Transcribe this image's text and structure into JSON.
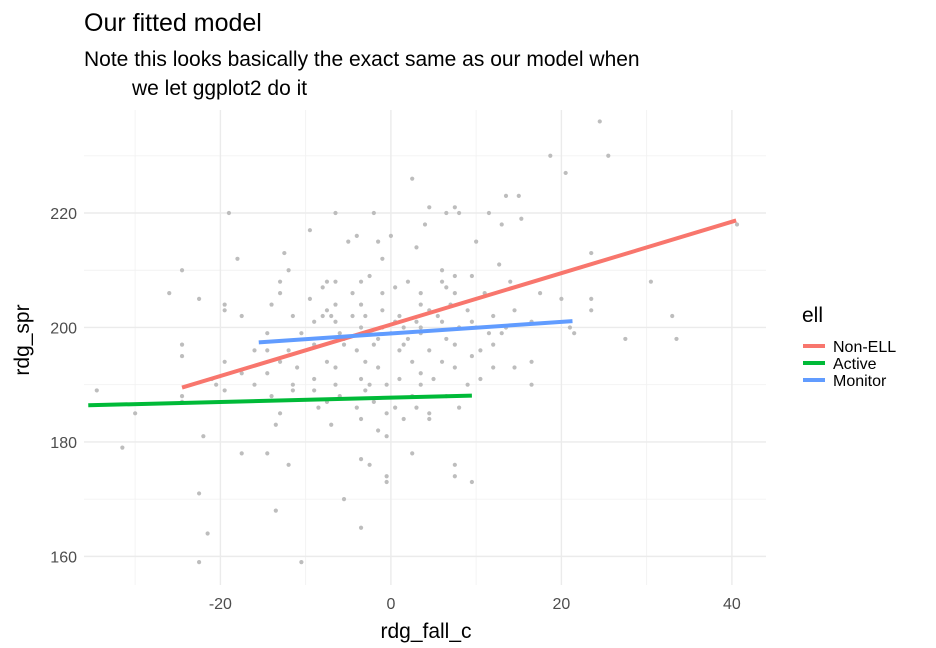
{
  "chart_data": {
    "type": "scatter",
    "title": "Our fitted model",
    "subtitle_lines": [
      "Note this looks basically the exact same as our model when",
      "we let ggplot2 do it"
    ],
    "xlabel": "rdg_fall_c",
    "ylabel": "rdg_spr",
    "xlim": [
      -36,
      44
    ],
    "ylim": [
      155,
      238
    ],
    "x_ticks": [
      -20,
      0,
      20,
      40
    ],
    "y_ticks": [
      160,
      180,
      200,
      220
    ],
    "x_minor": [
      -30,
      -10,
      10,
      30
    ],
    "y_minor": [
      170,
      190,
      210,
      230
    ],
    "grid": true,
    "point_color": "#bdbdbd",
    "legend": {
      "title": "ell",
      "position": "right",
      "entries": [
        {
          "label": "Non-ELL",
          "color": "#F8766D"
        },
        {
          "label": "Active",
          "color": "#00BA38"
        },
        {
          "label": "Monitor",
          "color": "#619CFF"
        }
      ]
    },
    "lines": [
      {
        "name": "Non-ELL",
        "color": "#F8766D",
        "x": [
          -24.5,
          40.5
        ],
        "y": [
          189.5,
          218.7
        ]
      },
      {
        "name": "Active",
        "color": "#00BA38",
        "x": [
          -35.5,
          9.5
        ],
        "y": [
          186.4,
          188.1
        ]
      },
      {
        "name": "Monitor",
        "color": "#619CFF",
        "x": [
          -15.5,
          21.3
        ],
        "y": [
          197.4,
          201.1
        ]
      }
    ],
    "points": [
      [
        24.5,
        236
      ],
      [
        25.5,
        230
      ],
      [
        18.7,
        230
      ],
      [
        20.5,
        227
      ],
      [
        2.5,
        226
      ],
      [
        13.5,
        223
      ],
      [
        15,
        223
      ],
      [
        4.5,
        221
      ],
      [
        7.5,
        221
      ],
      [
        -19,
        220
      ],
      [
        -6.5,
        220
      ],
      [
        -2,
        220
      ],
      [
        6.5,
        220
      ],
      [
        8,
        220
      ],
      [
        11.5,
        220
      ],
      [
        15.3,
        219
      ],
      [
        4,
        218
      ],
      [
        13,
        218
      ],
      [
        40.6,
        218
      ],
      [
        -9.5,
        217
      ],
      [
        -4,
        216
      ],
      [
        0,
        216
      ],
      [
        10,
        215
      ],
      [
        -1.5,
        215
      ],
      [
        -5,
        215
      ],
      [
        3,
        214
      ],
      [
        -12.5,
        213
      ],
      [
        -1,
        212
      ],
      [
        23.5,
        213
      ],
      [
        -18,
        212
      ],
      [
        12.7,
        211
      ],
      [
        -24.5,
        210
      ],
      [
        -12,
        210
      ],
      [
        6,
        210
      ],
      [
        7.5,
        209
      ],
      [
        9.5,
        209
      ],
      [
        -2.5,
        209
      ],
      [
        -13,
        208
      ],
      [
        -7.5,
        208
      ],
      [
        -6.5,
        208
      ],
      [
        -3.5,
        208
      ],
      [
        2,
        208
      ],
      [
        6,
        208
      ],
      [
        14,
        208
      ],
      [
        30.5,
        208
      ],
      [
        -8,
        207
      ],
      [
        0.5,
        207
      ],
      [
        6.5,
        207
      ],
      [
        7.5,
        206
      ],
      [
        11,
        206
      ],
      [
        -26,
        206
      ],
      [
        -22.5,
        205
      ],
      [
        -13,
        206
      ],
      [
        -9.5,
        205
      ],
      [
        -4.5,
        206
      ],
      [
        -1,
        206
      ],
      [
        3.5,
        206
      ],
      [
        17.5,
        206
      ],
      [
        23.5,
        205
      ],
      [
        -19.5,
        204
      ],
      [
        -14,
        204
      ],
      [
        -6.5,
        204
      ],
      [
        -3.5,
        204
      ],
      [
        3.5,
        204
      ],
      [
        7,
        204
      ],
      [
        20,
        205
      ],
      [
        -19.5,
        203
      ],
      [
        -7.5,
        203
      ],
      [
        -1,
        203
      ],
      [
        4.5,
        203
      ],
      [
        9,
        203
      ],
      [
        14.5,
        203
      ],
      [
        23.5,
        203
      ],
      [
        -17.5,
        202
      ],
      [
        -11.5,
        202
      ],
      [
        -8,
        202
      ],
      [
        -7,
        202
      ],
      [
        -4.5,
        202
      ],
      [
        -3,
        202
      ],
      [
        1,
        202
      ],
      [
        5.5,
        202
      ],
      [
        12,
        202
      ],
      [
        33,
        202
      ],
      [
        -9,
        201
      ],
      [
        -6.5,
        201
      ],
      [
        0.5,
        201
      ],
      [
        3,
        201
      ],
      [
        6,
        201
      ],
      [
        9.5,
        201
      ],
      [
        16.5,
        201
      ],
      [
        -3.5,
        200
      ],
      [
        -1,
        200
      ],
      [
        1.5,
        200
      ],
      [
        3.5,
        200
      ],
      [
        8,
        200
      ],
      [
        10,
        200
      ],
      [
        13.5,
        200
      ],
      [
        21,
        200
      ],
      [
        -14.5,
        199
      ],
      [
        -10.5,
        199
      ],
      [
        -6,
        199
      ],
      [
        -3,
        199
      ],
      [
        0,
        199
      ],
      [
        3.5,
        199
      ],
      [
        11.5,
        199
      ],
      [
        13,
        199
      ],
      [
        21.5,
        199
      ],
      [
        -5.5,
        198
      ],
      [
        -1.5,
        198
      ],
      [
        2,
        198
      ],
      [
        6.5,
        198
      ],
      [
        27.5,
        198
      ],
      [
        33.5,
        198
      ],
      [
        -24.5,
        197
      ],
      [
        -9,
        197
      ],
      [
        -5.5,
        197
      ],
      [
        -2,
        197
      ],
      [
        1.5,
        197
      ],
      [
        7.5,
        197
      ],
      [
        12,
        197
      ],
      [
        -24.5,
        195
      ],
      [
        -16,
        196
      ],
      [
        -14.5,
        196
      ],
      [
        -12,
        196
      ],
      [
        -4,
        196
      ],
      [
        1,
        196
      ],
      [
        4.5,
        196
      ],
      [
        10.5,
        196
      ],
      [
        -19.5,
        194
      ],
      [
        -13,
        194
      ],
      [
        -7.5,
        194
      ],
      [
        -3,
        194
      ],
      [
        2.5,
        194
      ],
      [
        6,
        194
      ],
      [
        9.5,
        195
      ],
      [
        16.5,
        194
      ],
      [
        -11,
        193
      ],
      [
        -6.5,
        193
      ],
      [
        -1.5,
        193
      ],
      [
        3.5,
        192
      ],
      [
        7.5,
        193
      ],
      [
        12,
        193
      ],
      [
        14.5,
        193
      ],
      [
        -21,
        191
      ],
      [
        -17.5,
        192
      ],
      [
        -14.5,
        192
      ],
      [
        -9,
        191
      ],
      [
        -3.5,
        191
      ],
      [
        1,
        191
      ],
      [
        5,
        191
      ],
      [
        10.5,
        191
      ],
      [
        -20.5,
        190
      ],
      [
        -16,
        190
      ],
      [
        -11.5,
        190
      ],
      [
        -6.5,
        190
      ],
      [
        -2.5,
        190
      ],
      [
        -0.5,
        190
      ],
      [
        3.5,
        190
      ],
      [
        9,
        190
      ],
      [
        16.5,
        190
      ],
      [
        -24.5,
        188
      ],
      [
        -19.5,
        189
      ],
      [
        -14,
        188
      ],
      [
        -11.5,
        189
      ],
      [
        -9,
        189
      ],
      [
        -6,
        188
      ],
      [
        -3,
        189
      ],
      [
        2.5,
        188
      ],
      [
        6.5,
        188
      ],
      [
        -24.5,
        187
      ],
      [
        -7.5,
        187
      ],
      [
        -2,
        187
      ],
      [
        0.5,
        186
      ],
      [
        3,
        186
      ],
      [
        8,
        186
      ],
      [
        -34.5,
        189
      ],
      [
        -30,
        185
      ],
      [
        -13,
        185
      ],
      [
        -8.5,
        186
      ],
      [
        -4,
        186
      ],
      [
        -0.5,
        185
      ],
      [
        4.5,
        185
      ],
      [
        -3.5,
        184
      ],
      [
        1.5,
        184
      ],
      [
        4.5,
        184
      ],
      [
        -13.5,
        183
      ],
      [
        -7,
        183
      ],
      [
        -1.5,
        182
      ],
      [
        -22,
        181
      ],
      [
        -0.5,
        181
      ],
      [
        -31.5,
        179
      ],
      [
        -17.5,
        178
      ],
      [
        -14.5,
        178
      ],
      [
        2.5,
        178
      ],
      [
        -3.5,
        177
      ],
      [
        -12,
        176
      ],
      [
        -2.5,
        176
      ],
      [
        7.5,
        176
      ],
      [
        7.5,
        174
      ],
      [
        -0.5,
        174
      ],
      [
        9.5,
        173
      ],
      [
        -0.5,
        173
      ],
      [
        -22.5,
        171
      ],
      [
        -5.5,
        170
      ],
      [
        -13.5,
        168
      ],
      [
        -3.5,
        165
      ],
      [
        -21.5,
        164
      ],
      [
        -22.5,
        159
      ],
      [
        -10.5,
        159
      ]
    ]
  }
}
